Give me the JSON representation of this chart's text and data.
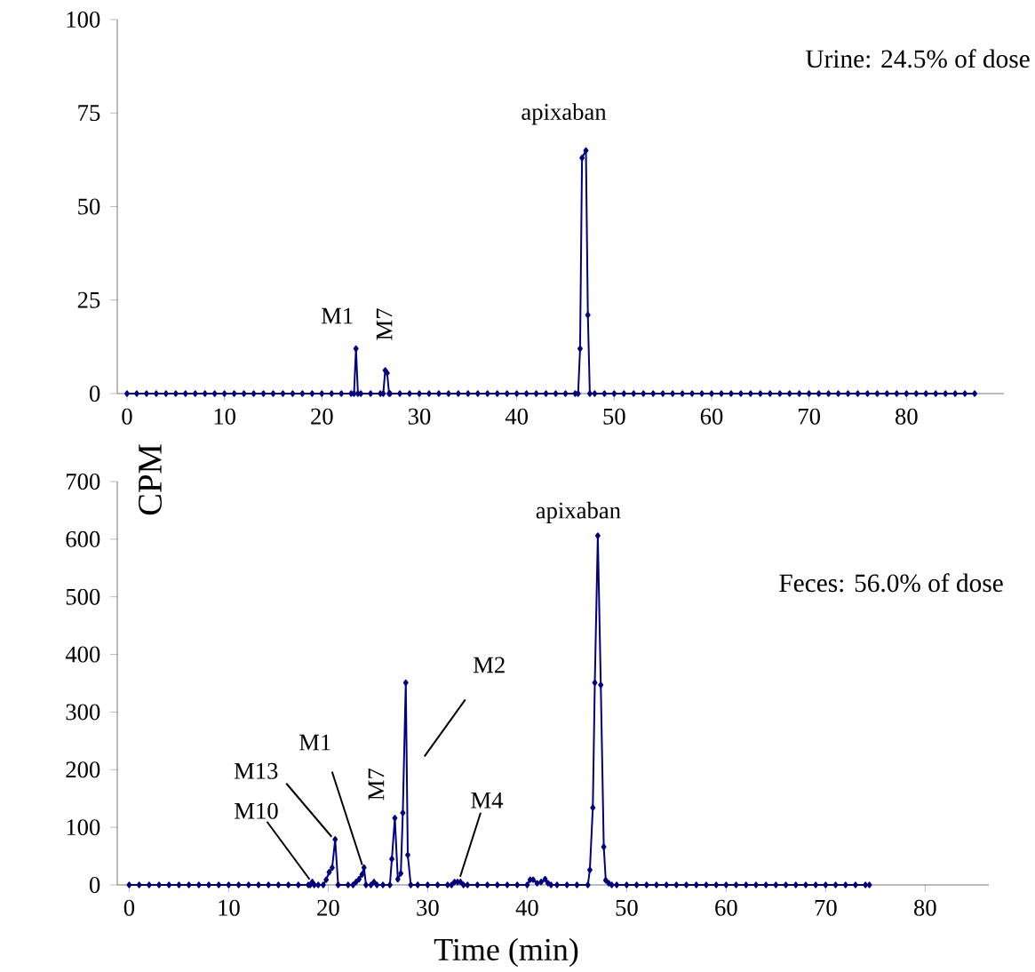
{
  "chart_data": [
    {
      "type": "line",
      "color": "#000080",
      "marker": "diamond",
      "line_style": "solid",
      "ylabel": "CPM",
      "x": [
        0,
        1,
        2,
        3,
        4,
        5,
        6,
        7,
        8,
        9,
        10,
        11,
        12,
        13,
        14,
        15,
        16,
        17,
        18,
        19,
        20,
        21,
        22,
        23,
        23.3,
        23.5,
        23.7,
        24,
        25,
        26,
        26.3,
        26.5,
        26.7,
        26.9,
        27,
        28,
        29,
        30,
        31,
        32,
        33,
        34,
        35,
        36,
        37,
        38,
        39,
        40,
        41,
        42,
        43,
        44,
        45,
        46,
        46.3,
        46.5,
        46.7,
        47.1,
        47.3,
        47.5,
        48,
        49,
        50,
        51,
        52,
        53,
        54,
        55,
        56,
        57,
        58,
        59,
        60,
        61,
        62,
        63,
        64,
        65,
        66,
        67,
        68,
        69,
        70,
        71,
        72,
        73,
        74,
        75,
        76,
        77,
        78,
        79,
        80,
        81,
        82,
        83,
        84,
        85,
        86,
        87
      ],
      "values": [
        0,
        0,
        0,
        0,
        0,
        0,
        0,
        0,
        0,
        0,
        0,
        0,
        0,
        0,
        0,
        0,
        0,
        0,
        0,
        0,
        0,
        0,
        0,
        0,
        0,
        12,
        0,
        0,
        0,
        0,
        0,
        6.2,
        5.5,
        0,
        0,
        0,
        0,
        0,
        0,
        0,
        0,
        0,
        0,
        0,
        0,
        0,
        0,
        0,
        0,
        0,
        0,
        0,
        0,
        0,
        0,
        12,
        63,
        65,
        21,
        0,
        0,
        0,
        0,
        0,
        0,
        0,
        0,
        0,
        0,
        0,
        0,
        0,
        0,
        0,
        0,
        0,
        0,
        0,
        0,
        0,
        0,
        0,
        0,
        0,
        0,
        0,
        0,
        0,
        0,
        0,
        0,
        0,
        0,
        0,
        0,
        0,
        0,
        0,
        0,
        0
      ],
      "xlim": [
        -1,
        90
      ],
      "ylim": [
        0,
        100
      ],
      "xticks": [
        0,
        10,
        20,
        30,
        40,
        50,
        60,
        70,
        80
      ],
      "yticks": [
        0,
        25,
        50,
        75,
        100
      ],
      "annotations": [
        "Urine: 24.5% of dose",
        {
          "text": "M1",
          "x": 23.5,
          "y": 12
        },
        {
          "text": "M7",
          "x": 26.5,
          "y": 6.2
        },
        {
          "text": "apixaban",
          "x": 47.1,
          "y": 65
        }
      ]
    },
    {
      "type": "line",
      "color": "#000080",
      "marker": "diamond",
      "line_style": "solid",
      "xlabel": "Time (min)",
      "x": [
        0,
        1,
        2,
        3,
        4,
        5,
        6,
        7,
        8,
        9,
        10,
        11,
        12,
        13,
        14,
        15,
        16,
        17,
        18,
        18.2,
        18.4,
        18.6,
        19,
        19.5,
        19.8,
        20.1,
        20.4,
        20.7,
        21,
        22,
        22.5,
        22.8,
        23.1,
        23.4,
        23.6,
        23.8,
        24.3,
        24.6,
        24.9,
        25.5,
        26.2,
        26.4,
        26.7,
        27,
        27.3,
        27.5,
        27.8,
        28,
        28.3,
        29,
        30,
        31,
        32,
        32.4,
        32.7,
        33,
        33.3,
        33.6,
        34,
        35,
        36,
        37,
        38,
        39,
        40,
        40.3,
        40.6,
        41,
        41.4,
        41.8,
        42.1,
        42.4,
        43,
        44,
        45,
        46.1,
        46.3,
        46.6,
        46.8,
        47.1,
        47.4,
        47.7,
        47.9,
        48.2,
        48.5,
        49,
        50,
        51,
        52,
        53,
        54,
        55,
        56,
        57,
        58,
        59,
        60,
        61,
        62,
        63,
        64,
        65,
        66,
        67,
        68,
        69,
        70,
        71,
        72,
        73,
        74,
        74.4
      ],
      "values": [
        0,
        0,
        0,
        0,
        0,
        0,
        0,
        0,
        0,
        0,
        0,
        0,
        0,
        0,
        0,
        0,
        0,
        0,
        0,
        0,
        5,
        0,
        0,
        0,
        9,
        22,
        30,
        79,
        0,
        0,
        0,
        5,
        10,
        18,
        30,
        0,
        0,
        5,
        0,
        0,
        0,
        45,
        116,
        10,
        20,
        125,
        351,
        52,
        0,
        0,
        0,
        0,
        0,
        0,
        5,
        5,
        5,
        0,
        0,
        0,
        0,
        0,
        0,
        0,
        0,
        9,
        9,
        3,
        5,
        10,
        3,
        0,
        0,
        0,
        0,
        0,
        26,
        134,
        351,
        606,
        347,
        66,
        8,
        3,
        0,
        0,
        0,
        0,
        0,
        0,
        0,
        0,
        0,
        0,
        0,
        0,
        0,
        0,
        0,
        0,
        0,
        0,
        0,
        0,
        0,
        0,
        0,
        0,
        0,
        0,
        0,
        0
      ],
      "xlim": [
        -1.2,
        86.4
      ],
      "ylim": [
        0,
        700
      ],
      "xticks": [
        0,
        10,
        20,
        30,
        40,
        50,
        60,
        70,
        80
      ],
      "yticks": [
        0,
        100,
        200,
        300,
        400,
        500,
        600,
        700
      ],
      "annotations": [
        "Feces: 56.0% of dose",
        {
          "text": "apixaban",
          "x": 47.1,
          "y": 606
        },
        {
          "text": "M2",
          "x": 27.8,
          "y": 351
        },
        {
          "text": "M4",
          "x": 33,
          "y": 5
        },
        {
          "text": "M1",
          "x": 23.6,
          "y": 30
        },
        {
          "text": "M13",
          "x": 20.7,
          "y": 79
        },
        {
          "text": "M10",
          "x": 18.4,
          "y": 5
        },
        {
          "text": "M7",
          "x": 26.7,
          "y": 116
        }
      ]
    }
  ]
}
